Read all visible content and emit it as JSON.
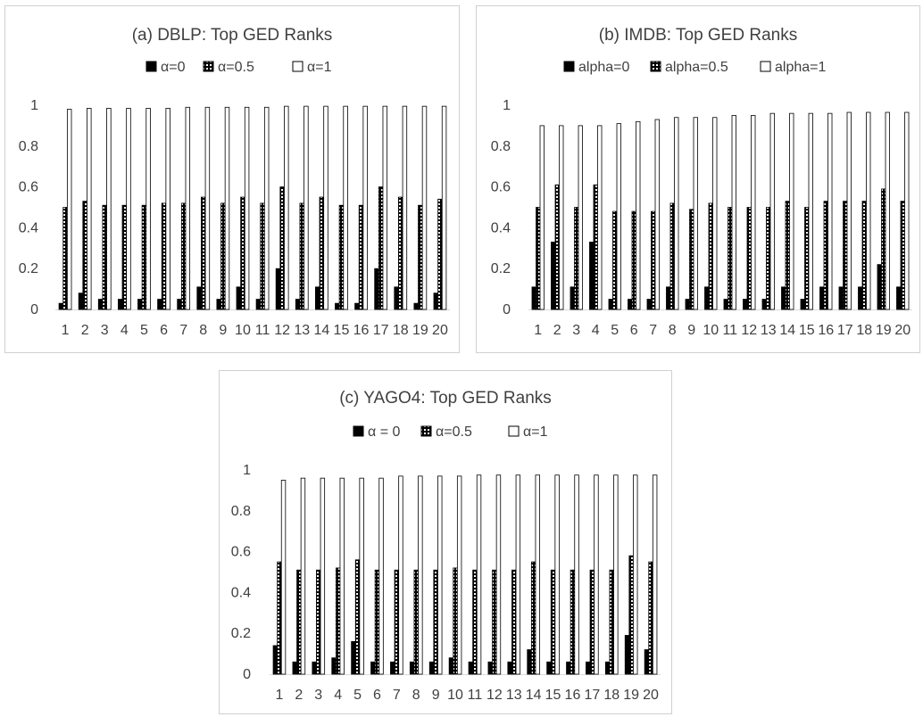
{
  "colors": {
    "bar_outline": "#000000",
    "alpha0_fill": "#000000",
    "alpha05_pattern": "dots-white-on-black",
    "alpha1_fill": "#ffffff",
    "axis": "#d9d9d9",
    "text": "#404040"
  },
  "chart_data": [
    {
      "type": "bar",
      "title": "(a) DBLP: Top GED Ranks",
      "legend_position": "top",
      "categories": [
        "1",
        "2",
        "3",
        "4",
        "5",
        "6",
        "7",
        "8",
        "9",
        "10",
        "11",
        "12",
        "13",
        "14",
        "15",
        "16",
        "17",
        "18",
        "19",
        "20"
      ],
      "y_ticks": [
        "0",
        "0.2",
        "0.4",
        "0.6",
        "0.8",
        "1"
      ],
      "ylim": [
        0,
        1
      ],
      "series": [
        {
          "name": "α=0",
          "values": [
            0.03,
            0.08,
            0.05,
            0.05,
            0.05,
            0.05,
            0.05,
            0.11,
            0.05,
            0.11,
            0.05,
            0.2,
            0.05,
            0.11,
            0.03,
            0.03,
            0.2,
            0.11,
            0.03,
            0.08
          ]
        },
        {
          "name": "α=0.5",
          "values": [
            0.5,
            0.53,
            0.51,
            0.51,
            0.51,
            0.52,
            0.52,
            0.55,
            0.52,
            0.55,
            0.52,
            0.6,
            0.52,
            0.55,
            0.51,
            0.51,
            0.6,
            0.55,
            0.51,
            0.54
          ]
        },
        {
          "name": "α=1",
          "values": [
            0.98,
            0.985,
            0.985,
            0.985,
            0.985,
            0.985,
            0.99,
            0.99,
            0.99,
            0.99,
            0.99,
            0.995,
            0.995,
            0.995,
            0.995,
            0.995,
            0.995,
            0.995,
            0.995,
            0.995
          ]
        }
      ]
    },
    {
      "type": "bar",
      "title": "(b) IMDB: Top GED Ranks",
      "legend_position": "top",
      "categories": [
        "1",
        "2",
        "3",
        "4",
        "5",
        "6",
        "7",
        "8",
        "9",
        "10",
        "11",
        "12",
        "13",
        "14",
        "15",
        "16",
        "17",
        "18",
        "19",
        "20"
      ],
      "y_ticks": [
        "0",
        "0.2",
        "0.4",
        "0.6",
        "0.8",
        "1"
      ],
      "ylim": [
        0,
        1
      ],
      "series": [
        {
          "name": "alpha=0",
          "values": [
            0.11,
            0.33,
            0.11,
            0.33,
            0.05,
            0.05,
            0.05,
            0.11,
            0.05,
            0.11,
            0.05,
            0.05,
            0.05,
            0.11,
            0.05,
            0.11,
            0.11,
            0.11,
            0.22,
            0.11
          ]
        },
        {
          "name": "alpha=0.5",
          "values": [
            0.5,
            0.61,
            0.5,
            0.61,
            0.48,
            0.48,
            0.48,
            0.52,
            0.49,
            0.52,
            0.5,
            0.5,
            0.5,
            0.53,
            0.5,
            0.53,
            0.53,
            0.53,
            0.59,
            0.53
          ]
        },
        {
          "name": "alpha=1",
          "values": [
            0.9,
            0.9,
            0.9,
            0.9,
            0.91,
            0.92,
            0.93,
            0.94,
            0.94,
            0.94,
            0.95,
            0.95,
            0.96,
            0.96,
            0.96,
            0.96,
            0.965,
            0.965,
            0.965,
            0.965
          ]
        }
      ]
    },
    {
      "type": "bar",
      "title": "(c) YAGO4: Top GED Ranks",
      "legend_position": "top",
      "categories": [
        "1",
        "2",
        "3",
        "4",
        "5",
        "6",
        "7",
        "8",
        "9",
        "10",
        "11",
        "12",
        "13",
        "14",
        "15",
        "16",
        "17",
        "18",
        "19",
        "20"
      ],
      "y_ticks": [
        "0",
        "0.2",
        "0.4",
        "0.6",
        "0.8",
        "1"
      ],
      "ylim": [
        0,
        1
      ],
      "series": [
        {
          "name": "α = 0",
          "values": [
            0.14,
            0.06,
            0.06,
            0.08,
            0.16,
            0.06,
            0.06,
            0.06,
            0.06,
            0.08,
            0.06,
            0.06,
            0.06,
            0.12,
            0.06,
            0.06,
            0.06,
            0.06,
            0.19,
            0.12
          ]
        },
        {
          "name": "α=0.5",
          "values": [
            0.55,
            0.51,
            0.51,
            0.52,
            0.56,
            0.51,
            0.51,
            0.51,
            0.51,
            0.52,
            0.51,
            0.51,
            0.51,
            0.55,
            0.51,
            0.51,
            0.51,
            0.51,
            0.58,
            0.55
          ]
        },
        {
          "name": "α=1",
          "values": [
            0.95,
            0.96,
            0.96,
            0.96,
            0.96,
            0.96,
            0.97,
            0.97,
            0.97,
            0.97,
            0.975,
            0.975,
            0.975,
            0.975,
            0.975,
            0.975,
            0.975,
            0.975,
            0.975,
            0.975
          ]
        }
      ]
    }
  ]
}
